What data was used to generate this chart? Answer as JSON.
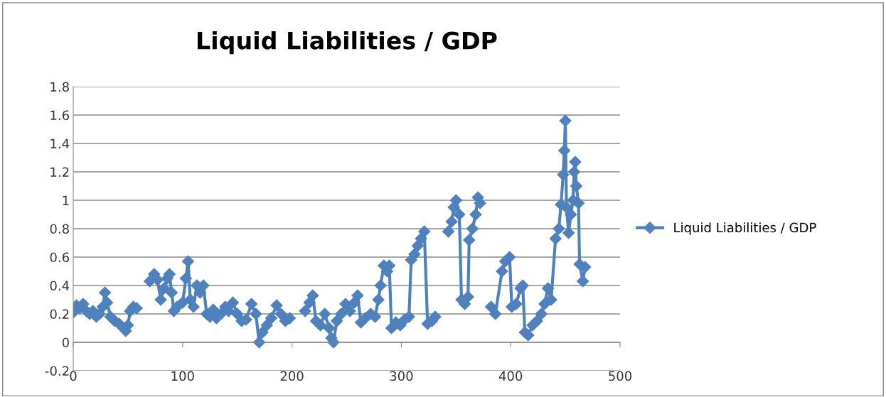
{
  "chart_data": {
    "type": "line",
    "title": "Liquid Liabilities / GDP",
    "x": [
      0,
      3,
      6,
      9,
      12,
      15,
      18,
      21,
      24,
      27,
      29,
      31,
      34,
      38,
      42,
      46,
      48,
      50,
      52,
      55,
      58,
      64,
      70,
      74,
      77,
      80,
      83,
      86,
      88,
      90,
      92,
      95,
      100,
      103,
      105,
      107,
      110,
      113,
      116,
      119,
      122,
      125,
      128,
      131,
      135,
      139,
      142,
      146,
      150,
      154,
      158,
      163,
      167,
      170,
      173,
      177,
      181,
      186,
      190,
      194,
      198,
      205,
      212,
      216,
      219,
      222,
      226,
      230,
      234,
      236,
      238,
      241,
      245,
      249,
      253,
      257,
      260,
      263,
      267,
      272,
      276,
      279,
      281,
      284,
      287,
      289,
      291,
      295,
      299,
      303,
      307,
      309,
      312,
      315,
      318,
      321,
      324,
      328,
      331,
      337,
      343,
      346,
      348,
      350,
      353,
      355,
      358,
      361,
      362,
      365,
      368,
      370,
      372,
      376,
      382,
      386,
      392,
      395,
      399,
      401,
      405,
      409,
      411,
      413,
      416,
      420,
      424,
      428,
      431,
      434,
      437,
      441,
      444,
      446,
      448,
      449,
      450,
      451,
      453,
      455,
      457,
      458,
      459,
      460,
      462,
      463,
      466,
      468
    ],
    "series": [
      {
        "name": "Liquid Liabilities / GDP",
        "color": "#4f81bd",
        "values": [
          0.21,
          0.26,
          0.24,
          0.27,
          0.22,
          0.2,
          0.22,
          0.18,
          0.2,
          0.25,
          0.35,
          0.28,
          0.18,
          0.15,
          0.13,
          0.1,
          0.08,
          0.12,
          0.22,
          0.25,
          0.24,
          null,
          0.43,
          0.48,
          0.44,
          0.3,
          0.38,
          0.45,
          0.48,
          0.35,
          0.22,
          0.25,
          0.28,
          0.45,
          0.57,
          0.3,
          0.25,
          0.4,
          0.35,
          0.4,
          0.2,
          0.18,
          0.23,
          0.17,
          0.2,
          0.25,
          0.22,
          0.28,
          0.2,
          0.15,
          0.16,
          0.27,
          0.2,
          0.0,
          0.07,
          0.12,
          0.17,
          0.26,
          0.2,
          0.15,
          0.17,
          null,
          0.22,
          0.28,
          0.33,
          0.15,
          0.12,
          0.2,
          0.1,
          0.03,
          0.0,
          0.15,
          0.2,
          0.27,
          0.22,
          0.28,
          0.33,
          0.14,
          0.17,
          0.2,
          0.18,
          0.3,
          0.4,
          0.54,
          0.5,
          0.54,
          0.1,
          0.14,
          0.12,
          0.16,
          0.18,
          0.58,
          0.62,
          0.68,
          0.73,
          0.78,
          0.13,
          0.15,
          0.18,
          null,
          0.78,
          0.85,
          0.95,
          1.0,
          0.9,
          0.3,
          0.27,
          0.32,
          0.72,
          0.8,
          0.9,
          1.02,
          0.98,
          null,
          0.25,
          0.2,
          0.5,
          0.57,
          0.6,
          0.25,
          0.27,
          0.38,
          0.4,
          0.07,
          0.05,
          0.12,
          0.15,
          0.2,
          0.27,
          0.38,
          0.3,
          0.73,
          0.8,
          0.97,
          1.18,
          1.35,
          1.56,
          0.95,
          0.77,
          0.9,
          1.0,
          1.2,
          1.27,
          1.1,
          0.98,
          0.55,
          0.43,
          0.53
        ]
      }
    ],
    "xlim": [
      0,
      500
    ],
    "xticks": [
      0,
      100,
      200,
      300,
      400,
      500
    ],
    "ylim": [
      -0.2,
      1.8
    ],
    "yticks": [
      -0.2,
      0,
      0.2,
      0.4,
      0.6,
      0.8,
      1,
      1.2,
      1.4,
      1.6,
      1.8
    ],
    "grid": "y",
    "legend": "right",
    "marker": "diamond",
    "line_style": "solid"
  }
}
